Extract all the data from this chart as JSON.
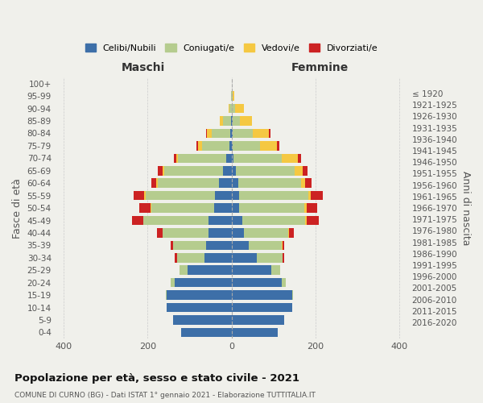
{
  "age_groups": [
    "100+",
    "95-99",
    "90-94",
    "85-89",
    "80-84",
    "75-79",
    "70-74",
    "65-69",
    "60-64",
    "55-59",
    "50-54",
    "45-49",
    "40-44",
    "35-39",
    "30-34",
    "25-29",
    "20-24",
    "15-19",
    "10-14",
    "5-9",
    "0-4"
  ],
  "birth_years": [
    "≤ 1920",
    "1921-1925",
    "1926-1930",
    "1931-1935",
    "1936-1940",
    "1941-1945",
    "1946-1950",
    "1951-1955",
    "1956-1960",
    "1961-1965",
    "1966-1970",
    "1971-1975",
    "1976-1980",
    "1981-1985",
    "1986-1990",
    "1991-1995",
    "1996-2000",
    "2001-2005",
    "2006-2010",
    "2011-2015",
    "2016-2020"
  ],
  "colors": {
    "celibi": "#3d6fa8",
    "coniugati": "#b5cc8e",
    "vedovi": "#f5c842",
    "divorziati": "#cc2222"
  },
  "maschi": {
    "celibi": [
      0,
      0,
      0,
      2,
      3,
      5,
      12,
      20,
      30,
      40,
      42,
      55,
      55,
      60,
      65,
      105,
      135,
      155,
      155,
      140,
      120
    ],
    "coniugati": [
      0,
      1,
      5,
      18,
      45,
      65,
      115,
      140,
      145,
      165,
      150,
      155,
      110,
      80,
      65,
      20,
      10,
      2,
      0,
      0,
      0
    ],
    "vedovi": [
      0,
      1,
      3,
      8,
      10,
      10,
      5,
      5,
      5,
      3,
      2,
      0,
      0,
      0,
      0,
      0,
      0,
      0,
      0,
      0,
      0
    ],
    "divorziati": [
      0,
      0,
      0,
      0,
      3,
      3,
      5,
      10,
      12,
      25,
      25,
      28,
      12,
      5,
      5,
      0,
      0,
      0,
      0,
      0,
      0
    ]
  },
  "femmine": {
    "celibi": [
      0,
      0,
      0,
      2,
      3,
      3,
      5,
      10,
      15,
      18,
      18,
      25,
      30,
      40,
      60,
      95,
      120,
      145,
      145,
      125,
      110
    ],
    "coniugati": [
      0,
      2,
      8,
      18,
      48,
      65,
      115,
      140,
      150,
      165,
      155,
      150,
      105,
      80,
      62,
      20,
      10,
      2,
      0,
      0,
      0
    ],
    "vedovi": [
      1,
      5,
      22,
      28,
      38,
      40,
      38,
      20,
      10,
      5,
      5,
      3,
      1,
      1,
      0,
      0,
      0,
      0,
      0,
      0,
      0
    ],
    "divorziati": [
      0,
      0,
      0,
      0,
      3,
      5,
      8,
      10,
      15,
      30,
      25,
      30,
      12,
      5,
      3,
      0,
      0,
      0,
      0,
      0,
      0
    ]
  },
  "title": "Popolazione per età, sesso e stato civile - 2021",
  "subtitle": "COMUNE DI CURNO (BG) - Dati ISTAT 1° gennaio 2021 - Elaborazione TUTTITALIA.IT",
  "xlabel_maschi": "Maschi",
  "xlabel_femmine": "Femmine",
  "ylabel": "Fasce di età",
  "ylabel_right": "Anni di nascita",
  "xlim": 420,
  "legend_labels": [
    "Celibi/Nubili",
    "Coniugati/e",
    "Vedovi/e",
    "Divorziati/e"
  ],
  "background_color": "#f0f0eb"
}
